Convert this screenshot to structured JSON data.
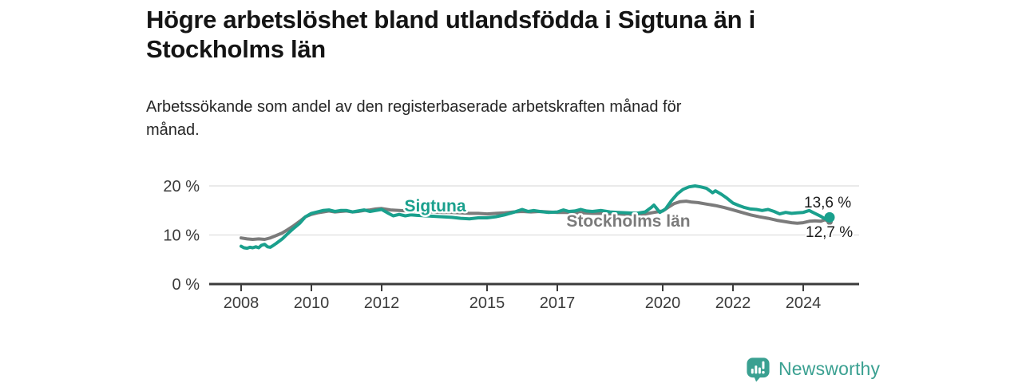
{
  "title": "Högre arbetslöshet bland utlandsfödda i Sigtuna än i Stockholms län",
  "title_lines": [
    "Högre arbetslöshet bland utlandsfödda i Sigtuna än i",
    "Stockholms län"
  ],
  "subtitle": "Arbetssökande som andel av den registerbaserade arbetskraften månad för månad.",
  "subtitle_lines": [
    "Arbetssökande som andel av den registerbaserade arbetskraften månad för",
    "månad."
  ],
  "colors": {
    "sigtuna": "#1aa08d",
    "stockholm": "#7b7b7b",
    "axis": "#3b3b3b",
    "grid": "#e3e3e3",
    "end_label_text": "#1c1c1c",
    "logo_teal": "#3aa091"
  },
  "branding": {
    "logo_text": "Newsworthy",
    "logo_icon": "bar-chart-speech-bubble"
  },
  "chart_data": {
    "type": "line",
    "title": "Högre arbetslöshet bland utlandsfödda i Sigtuna än i Stockholms län",
    "subtitle": "Arbetssökande som andel av den registerbaserade arbetskraften månad för månad.",
    "xlabel": "",
    "ylabel": "",
    "x_unit": "year",
    "y_unit": "%",
    "xlim": [
      2007.1,
      2025.6
    ],
    "ylim": [
      0,
      23
    ],
    "grid": "horizontal",
    "legend_position": "inline-labels",
    "x_ticks": [
      2008,
      2010,
      2012,
      2015,
      2017,
      2020,
      2022,
      2024
    ],
    "x_tick_labels": [
      "2008",
      "2010",
      "2012",
      "2015",
      "2017",
      "2020",
      "2022",
      "2024"
    ],
    "y_ticks": [
      0,
      10,
      20
    ],
    "y_tick_labels": [
      "0 %",
      "10 %",
      "20 %"
    ],
    "series": [
      {
        "name": "Stockholms län",
        "color": "#7b7b7b",
        "end_label": "12,7 %",
        "end_value": 12.7,
        "end_dot_radius": 4,
        "points": [
          [
            2008.0,
            9.4
          ],
          [
            2008.17,
            9.2
          ],
          [
            2008.33,
            9.1
          ],
          [
            2008.5,
            9.2
          ],
          [
            2008.67,
            9.1
          ],
          [
            2008.83,
            9.4
          ],
          [
            2009.0,
            9.9
          ],
          [
            2009.17,
            10.4
          ],
          [
            2009.33,
            11.1
          ],
          [
            2009.5,
            11.9
          ],
          [
            2009.67,
            12.8
          ],
          [
            2009.83,
            13.7
          ],
          [
            2010.0,
            14.2
          ],
          [
            2010.17,
            14.5
          ],
          [
            2010.33,
            14.7
          ],
          [
            2010.5,
            14.9
          ],
          [
            2010.67,
            14.7
          ],
          [
            2010.83,
            14.8
          ],
          [
            2011.0,
            14.9
          ],
          [
            2011.17,
            14.7
          ],
          [
            2011.33,
            14.8
          ],
          [
            2011.5,
            15.0
          ],
          [
            2011.67,
            15.1
          ],
          [
            2011.83,
            15.3
          ],
          [
            2012.0,
            15.4
          ],
          [
            2012.25,
            15.1
          ],
          [
            2012.5,
            15.0
          ],
          [
            2012.75,
            14.9
          ],
          [
            2013.0,
            14.9
          ],
          [
            2013.25,
            14.8
          ],
          [
            2013.5,
            14.7
          ],
          [
            2013.75,
            14.6
          ],
          [
            2014.0,
            14.6
          ],
          [
            2014.25,
            14.5
          ],
          [
            2014.5,
            14.4
          ],
          [
            2014.75,
            14.4
          ],
          [
            2015.0,
            14.3
          ],
          [
            2015.25,
            14.4
          ],
          [
            2015.5,
            14.5
          ],
          [
            2015.75,
            14.7
          ],
          [
            2016.0,
            14.8
          ],
          [
            2016.25,
            14.7
          ],
          [
            2016.5,
            14.8
          ],
          [
            2016.75,
            14.7
          ],
          [
            2017.0,
            14.6
          ],
          [
            2017.25,
            14.6
          ],
          [
            2017.5,
            14.5
          ],
          [
            2017.75,
            14.5
          ],
          [
            2018.0,
            14.4
          ],
          [
            2018.25,
            14.4
          ],
          [
            2018.5,
            14.3
          ],
          [
            2018.75,
            14.3
          ],
          [
            2019.0,
            14.2
          ],
          [
            2019.25,
            14.2
          ],
          [
            2019.5,
            14.3
          ],
          [
            2019.75,
            14.6
          ],
          [
            2020.0,
            14.9
          ],
          [
            2020.17,
            15.7
          ],
          [
            2020.33,
            16.4
          ],
          [
            2020.5,
            16.8
          ],
          [
            2020.67,
            16.9
          ],
          [
            2020.83,
            16.7
          ],
          [
            2021.0,
            16.6
          ],
          [
            2021.25,
            16.3
          ],
          [
            2021.5,
            16.0
          ],
          [
            2021.75,
            15.6
          ],
          [
            2022.0,
            15.1
          ],
          [
            2022.25,
            14.6
          ],
          [
            2022.5,
            14.1
          ],
          [
            2022.75,
            13.7
          ],
          [
            2023.0,
            13.4
          ],
          [
            2023.25,
            13.0
          ],
          [
            2023.5,
            12.7
          ],
          [
            2023.67,
            12.5
          ],
          [
            2023.83,
            12.4
          ],
          [
            2024.0,
            12.5
          ],
          [
            2024.17,
            12.8
          ],
          [
            2024.33,
            12.9
          ],
          [
            2024.5,
            12.8
          ],
          [
            2024.62,
            13.1
          ],
          [
            2024.75,
            12.7
          ]
        ]
      },
      {
        "name": "Sigtuna",
        "color": "#1aa08d",
        "end_label": "13,6 %",
        "end_value": 13.6,
        "end_dot_radius": 6.5,
        "points": [
          [
            2008.0,
            7.7
          ],
          [
            2008.08,
            7.4
          ],
          [
            2008.17,
            7.3
          ],
          [
            2008.25,
            7.5
          ],
          [
            2008.33,
            7.4
          ],
          [
            2008.42,
            7.6
          ],
          [
            2008.5,
            7.4
          ],
          [
            2008.58,
            7.9
          ],
          [
            2008.67,
            8.1
          ],
          [
            2008.75,
            7.6
          ],
          [
            2008.83,
            7.5
          ],
          [
            2008.92,
            7.9
          ],
          [
            2009.0,
            8.3
          ],
          [
            2009.17,
            9.2
          ],
          [
            2009.33,
            10.3
          ],
          [
            2009.5,
            11.4
          ],
          [
            2009.67,
            12.4
          ],
          [
            2009.83,
            13.7
          ],
          [
            2010.0,
            14.4
          ],
          [
            2010.17,
            14.7
          ],
          [
            2010.33,
            15.0
          ],
          [
            2010.5,
            15.1
          ],
          [
            2010.67,
            14.8
          ],
          [
            2010.83,
            15.0
          ],
          [
            2011.0,
            15.0
          ],
          [
            2011.17,
            14.7
          ],
          [
            2011.33,
            14.9
          ],
          [
            2011.5,
            15.1
          ],
          [
            2011.67,
            14.8
          ],
          [
            2011.83,
            15.0
          ],
          [
            2012.0,
            15.2
          ],
          [
            2012.17,
            14.5
          ],
          [
            2012.33,
            13.9
          ],
          [
            2012.5,
            14.2
          ],
          [
            2012.67,
            13.9
          ],
          [
            2012.83,
            14.1
          ],
          [
            2013.0,
            14.0
          ],
          [
            2013.25,
            13.9
          ],
          [
            2013.5,
            13.8
          ],
          [
            2013.75,
            13.7
          ],
          [
            2014.0,
            13.6
          ],
          [
            2014.25,
            13.4
          ],
          [
            2014.5,
            13.3
          ],
          [
            2014.75,
            13.5
          ],
          [
            2015.0,
            13.5
          ],
          [
            2015.25,
            13.7
          ],
          [
            2015.5,
            14.1
          ],
          [
            2015.75,
            14.6
          ],
          [
            2016.0,
            15.2
          ],
          [
            2016.17,
            14.8
          ],
          [
            2016.33,
            15.0
          ],
          [
            2016.5,
            14.8
          ],
          [
            2016.75,
            14.6
          ],
          [
            2017.0,
            14.7
          ],
          [
            2017.17,
            15.1
          ],
          [
            2017.33,
            14.8
          ],
          [
            2017.5,
            14.9
          ],
          [
            2017.67,
            15.2
          ],
          [
            2017.83,
            14.9
          ],
          [
            2018.0,
            14.8
          ],
          [
            2018.25,
            15.0
          ],
          [
            2018.5,
            14.7
          ],
          [
            2018.75,
            14.6
          ],
          [
            2019.0,
            14.5
          ],
          [
            2019.25,
            14.4
          ],
          [
            2019.5,
            14.7
          ],
          [
            2019.67,
            15.6
          ],
          [
            2019.75,
            16.1
          ],
          [
            2019.92,
            14.6
          ],
          [
            2020.08,
            15.3
          ],
          [
            2020.25,
            17.0
          ],
          [
            2020.42,
            18.4
          ],
          [
            2020.58,
            19.3
          ],
          [
            2020.75,
            19.8
          ],
          [
            2020.92,
            20.0
          ],
          [
            2021.08,
            19.8
          ],
          [
            2021.25,
            19.5
          ],
          [
            2021.42,
            18.6
          ],
          [
            2021.5,
            19.0
          ],
          [
            2021.67,
            18.3
          ],
          [
            2021.83,
            17.5
          ],
          [
            2022.0,
            16.5
          ],
          [
            2022.17,
            16.0
          ],
          [
            2022.33,
            15.6
          ],
          [
            2022.5,
            15.3
          ],
          [
            2022.67,
            15.2
          ],
          [
            2022.83,
            15.0
          ],
          [
            2023.0,
            15.2
          ],
          [
            2023.17,
            14.8
          ],
          [
            2023.33,
            14.3
          ],
          [
            2023.5,
            14.6
          ],
          [
            2023.67,
            14.4
          ],
          [
            2023.83,
            14.5
          ],
          [
            2024.0,
            14.6
          ],
          [
            2024.17,
            15.0
          ],
          [
            2024.33,
            14.4
          ],
          [
            2024.5,
            13.8
          ],
          [
            2024.62,
            13.3
          ],
          [
            2024.75,
            13.6
          ]
        ]
      }
    ],
    "inline_labels": {
      "sigtuna": "Sigtuna",
      "stockholm": "Stockholms län"
    },
    "end_labels": {
      "sigtuna": "13,6 %",
      "stockholm": "12,7 %"
    }
  }
}
